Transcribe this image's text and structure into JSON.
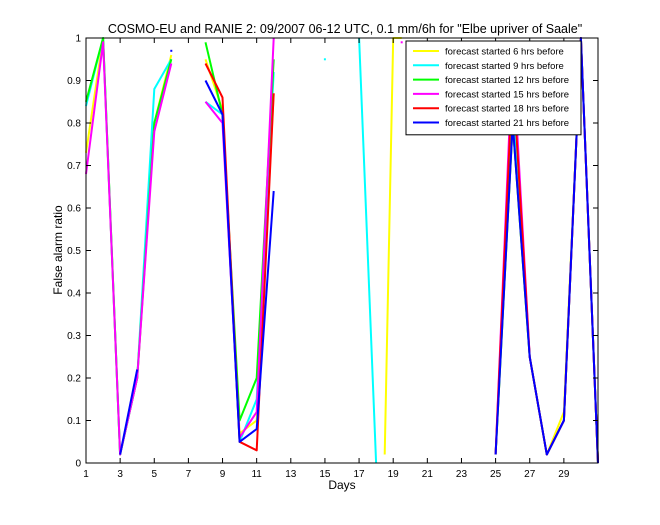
{
  "chart_data": {
    "type": "line",
    "title": "COSMO-EU and RANIE 2: 09/2007 06-12 UTC, 0.1 mm/6h for \"Elbe upriver of Saale\"",
    "xlabel": "Days",
    "ylabel": "False alarm ratio",
    "xlim": [
      1,
      31
    ],
    "ylim": [
      0,
      1
    ],
    "xticks": [
      1,
      3,
      5,
      7,
      9,
      11,
      13,
      15,
      17,
      19,
      21,
      23,
      25,
      27,
      29
    ],
    "yticks": [
      0,
      0.1,
      0.2,
      0.3,
      0.4,
      0.5,
      0.6,
      0.7,
      0.8,
      0.9,
      1
    ],
    "legend_position": "top-right",
    "grid": false,
    "series": [
      {
        "name": "forecast started 6 hrs before",
        "color": "#ffff00",
        "points": [
          [
            1,
            0.73
          ],
          [
            2,
            1.0
          ],
          [
            3,
            0.02
          ],
          [
            4,
            0.2
          ],
          [
            5,
            0.8
          ],
          [
            6,
            0.96
          ],
          [
            null,
            null
          ],
          [
            8,
            0.95
          ],
          [
            9,
            0.83
          ],
          [
            10,
            0.07
          ],
          [
            11,
            0.1
          ],
          [
            12,
            0.87
          ],
          [
            null,
            null
          ],
          [
            18.5,
            0.02
          ],
          [
            19,
            1.0
          ],
          [
            19.5,
            1.0
          ],
          [
            null,
            null
          ],
          [
            25,
            0.02
          ],
          [
            26,
            0.8
          ],
          [
            27,
            0.25
          ],
          [
            28,
            0.02
          ],
          [
            29,
            0.12
          ],
          [
            30,
            1.0
          ],
          [
            31,
            0.0
          ]
        ]
      },
      {
        "name": "forecast started 9 hrs before",
        "color": "#00ffff",
        "points": [
          [
            1,
            0.84
          ],
          [
            2,
            1.0
          ],
          [
            3,
            0.02
          ],
          [
            4,
            0.2
          ],
          [
            5,
            0.88
          ],
          [
            6,
            0.95
          ],
          [
            null,
            null
          ],
          [
            8,
            0.85
          ],
          [
            9,
            0.82
          ],
          [
            10,
            0.05
          ],
          [
            11,
            0.15
          ],
          [
            12,
            0.92
          ],
          [
            null,
            null
          ],
          [
            15,
            0.95
          ],
          [
            null,
            null
          ],
          [
            17,
            1.0
          ],
          [
            18,
            0.0
          ],
          [
            null,
            null
          ],
          [
            21,
            0.92
          ],
          [
            null,
            null
          ],
          [
            25,
            0.02
          ],
          [
            26,
            0.85
          ],
          [
            27,
            0.25
          ],
          [
            28,
            0.02
          ],
          [
            29,
            0.1
          ],
          [
            30,
            1.0
          ],
          [
            31,
            0.0
          ]
        ]
      },
      {
        "name": "forecast started 12 hrs before",
        "color": "#00ff00",
        "points": [
          [
            1,
            0.85
          ],
          [
            2,
            1.0
          ],
          [
            3,
            0.02
          ],
          [
            4,
            0.2
          ],
          [
            5,
            0.8
          ],
          [
            6,
            0.95
          ],
          [
            null,
            null
          ],
          [
            8,
            0.99
          ],
          [
            9,
            0.82
          ],
          [
            10,
            0.1
          ],
          [
            11,
            0.2
          ],
          [
            12,
            0.95
          ],
          [
            null,
            null
          ],
          [
            25,
            0.02
          ],
          [
            26,
            0.8
          ],
          [
            27,
            0.25
          ],
          [
            28,
            0.02
          ],
          [
            29,
            0.1
          ],
          [
            30,
            1.0
          ],
          [
            31,
            0.0
          ]
        ]
      },
      {
        "name": "forecast started 15 hrs before",
        "color": "#ff00ff",
        "points": [
          [
            1,
            0.68
          ],
          [
            2,
            0.99
          ],
          [
            3,
            0.02
          ],
          [
            4,
            0.2
          ],
          [
            5,
            0.78
          ],
          [
            6,
            0.94
          ],
          [
            null,
            null
          ],
          [
            8,
            0.85
          ],
          [
            9,
            0.8
          ],
          [
            10,
            0.06
          ],
          [
            11,
            0.12
          ],
          [
            12,
            1.0
          ],
          [
            null,
            null
          ],
          [
            19.5,
            0.99
          ],
          [
            null,
            null
          ],
          [
            25,
            0.02
          ],
          [
            26,
            0.97
          ],
          [
            27,
            0.25
          ],
          [
            28,
            0.02
          ],
          [
            29,
            0.1
          ],
          [
            30,
            1.0
          ],
          [
            31,
            0.0
          ]
        ]
      },
      {
        "name": "forecast started 18 hrs before",
        "color": "#ff0000",
        "points": [
          [
            8,
            0.94
          ],
          [
            9,
            0.86
          ],
          [
            10,
            0.05
          ],
          [
            11,
            0.03
          ],
          [
            12,
            0.87
          ],
          [
            null,
            null
          ],
          [
            25,
            0.02
          ],
          [
            26,
            0.92
          ],
          [
            27,
            0.25
          ],
          [
            28,
            0.02
          ],
          [
            29,
            0.1
          ],
          [
            30,
            1.0
          ],
          [
            31,
            0.0
          ]
        ]
      },
      {
        "name": "forecast started 21 hrs before",
        "color": "#0000ff",
        "points": [
          [
            3,
            0.02
          ],
          [
            4,
            0.22
          ],
          [
            null,
            null
          ],
          [
            6,
            0.97
          ],
          [
            null,
            null
          ],
          [
            8,
            0.9
          ],
          [
            9,
            0.82
          ],
          [
            10,
            0.05
          ],
          [
            11,
            0.08
          ],
          [
            12,
            0.64
          ],
          [
            null,
            null
          ],
          [
            25,
            0.02
          ],
          [
            26,
            0.8
          ],
          [
            27,
            0.25
          ],
          [
            28,
            0.02
          ],
          [
            29,
            0.1
          ],
          [
            30,
            1.0
          ],
          [
            31,
            0.0
          ]
        ]
      }
    ]
  }
}
